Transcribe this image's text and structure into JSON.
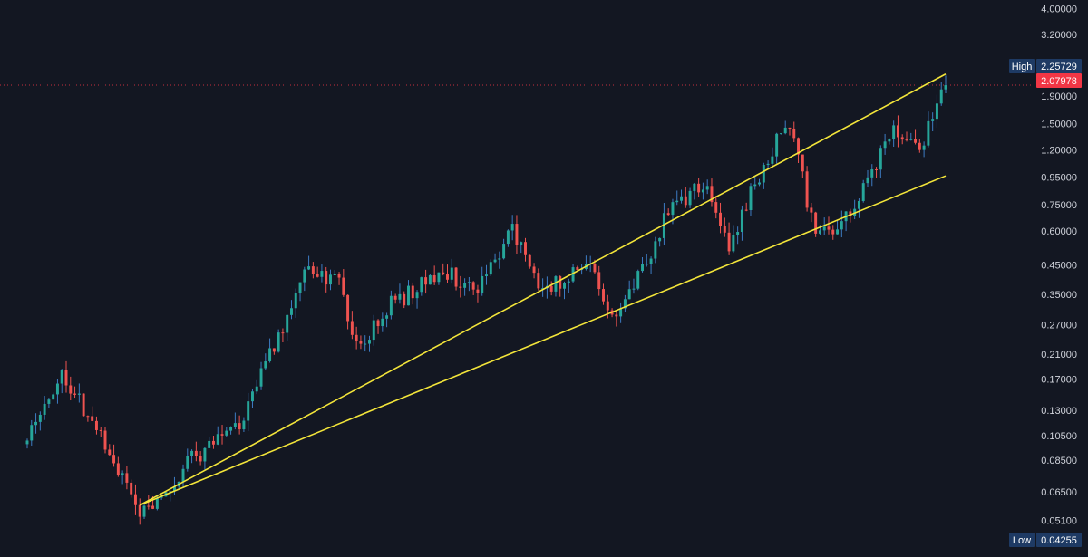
{
  "colors": {
    "background": "#131722",
    "up": "#26a69a",
    "down": "#ef5350",
    "wick_up": "#3d7cc4",
    "trendline": "#f3e53a",
    "axis_text": "#d1d4dc",
    "badge_dark": "#1e3a64",
    "badge_red": "#f23645",
    "price_line": "#f23645"
  },
  "chart_data": {
    "type": "candlestick",
    "scale": "log",
    "ylim": [
      0.0425,
      4.2
    ],
    "y_ticks": [
      {
        "value": 4.0,
        "label": "4.00000"
      },
      {
        "value": 3.2,
        "label": "3.20000"
      },
      {
        "value": 1.9,
        "label": "1.90000"
      },
      {
        "value": 1.5,
        "label": "1.50000"
      },
      {
        "value": 1.2,
        "label": "1.20000"
      },
      {
        "value": 0.95,
        "label": "0.95000"
      },
      {
        "value": 0.75,
        "label": "0.75000"
      },
      {
        "value": 0.6,
        "label": "0.60000"
      },
      {
        "value": 0.45,
        "label": "0.45000"
      },
      {
        "value": 0.35,
        "label": "0.35000"
      },
      {
        "value": 0.27,
        "label": "0.27000"
      },
      {
        "value": 0.21,
        "label": "0.21000"
      },
      {
        "value": 0.17,
        "label": "0.17000"
      },
      {
        "value": 0.13,
        "label": "0.13000"
      },
      {
        "value": 0.105,
        "label": "0.10500"
      },
      {
        "value": 0.085,
        "label": "0.08500"
      },
      {
        "value": 0.065,
        "label": "0.06500"
      },
      {
        "value": 0.051,
        "label": "0.05100"
      }
    ],
    "high": {
      "label": "High",
      "value": 2.25729,
      "text": "2.25729"
    },
    "low": {
      "label": "Low",
      "value": 0.04255,
      "text": "0.04255"
    },
    "last_price": {
      "value": 2.07978,
      "text": "2.07978"
    },
    "trend_anchors": [
      {
        "t": 0,
        "v": 0.1
      },
      {
        "t": 8,
        "v": 0.18
      },
      {
        "t": 22,
        "v": 0.075
      },
      {
        "t": 26,
        "v": 0.052
      },
      {
        "t": 38,
        "v": 0.085
      },
      {
        "t": 50,
        "v": 0.12
      },
      {
        "t": 64,
        "v": 0.43
      },
      {
        "t": 72,
        "v": 0.4
      },
      {
        "t": 76,
        "v": 0.22
      },
      {
        "t": 84,
        "v": 0.32
      },
      {
        "t": 96,
        "v": 0.42
      },
      {
        "t": 104,
        "v": 0.37
      },
      {
        "t": 112,
        "v": 0.62
      },
      {
        "t": 118,
        "v": 0.36
      },
      {
        "t": 130,
        "v": 0.45
      },
      {
        "t": 136,
        "v": 0.27
      },
      {
        "t": 148,
        "v": 0.7
      },
      {
        "t": 156,
        "v": 0.9
      },
      {
        "t": 162,
        "v": 0.52
      },
      {
        "t": 168,
        "v": 0.92
      },
      {
        "t": 176,
        "v": 1.55
      },
      {
        "t": 182,
        "v": 0.55
      },
      {
        "t": 190,
        "v": 0.68
      },
      {
        "t": 200,
        "v": 1.45
      },
      {
        "t": 206,
        "v": 1.2
      },
      {
        "t": 212,
        "v": 2.08
      }
    ],
    "trendlines": [
      {
        "name": "upper",
        "t1": 26,
        "v1": 0.058,
        "t2": 212,
        "v2": 2.15
      },
      {
        "name": "lower",
        "t1": 26,
        "v1": 0.058,
        "t2": 212,
        "v2": 0.96
      }
    ]
  }
}
